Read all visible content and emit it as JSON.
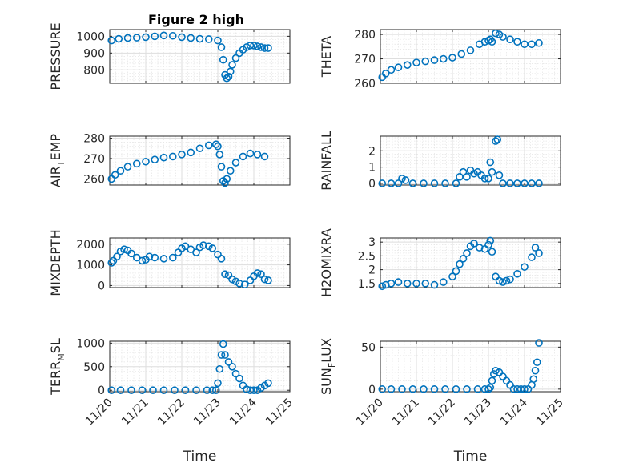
{
  "colors": {
    "marker": "#0072bd",
    "axis": "#262626"
  },
  "chart_data": [
    {
      "type": "scatter",
      "title": "Figure 2 high",
      "ylabel": "PRESSURE",
      "ylim": [
        720,
        1040
      ],
      "yticks": [
        800,
        900,
        1000
      ],
      "xlim": [
        0,
        5
      ],
      "xticks": [],
      "x": [
        0.05,
        0.25,
        0.5,
        0.75,
        1.0,
        1.25,
        1.5,
        1.75,
        2.0,
        2.25,
        2.5,
        2.75,
        3.0,
        3.1,
        3.15,
        3.2,
        3.25,
        3.3,
        3.35,
        3.4,
        3.5,
        3.6,
        3.7,
        3.8,
        3.9,
        4.0,
        4.1,
        4.2,
        4.3,
        4.4
      ],
      "values": [
        975,
        985,
        990,
        992,
        995,
        1000,
        1005,
        1003,
        995,
        990,
        985,
        983,
        975,
        935,
        860,
        770,
        750,
        760,
        790,
        830,
        870,
        900,
        920,
        935,
        945,
        945,
        940,
        935,
        930,
        930
      ]
    },
    {
      "type": "scatter",
      "ylabel": "THETA",
      "ylim": [
        260,
        282
      ],
      "yticks": [
        260,
        270,
        280
      ],
      "xlim": [
        0,
        5
      ],
      "xticks": [],
      "x": [
        0.05,
        0.15,
        0.3,
        0.5,
        0.75,
        1.0,
        1.25,
        1.5,
        1.75,
        2.0,
        2.25,
        2.5,
        2.75,
        2.9,
        3.0,
        3.05,
        3.1,
        3.2,
        3.3,
        3.4,
        3.6,
        3.8,
        4.0,
        4.2,
        4.4
      ],
      "values": [
        262.5,
        264,
        265.5,
        266.5,
        267.5,
        268.5,
        269,
        269.5,
        270,
        270.5,
        272,
        273.5,
        276,
        277,
        277.5,
        278,
        277,
        280.5,
        280,
        279,
        278,
        277,
        276,
        276,
        276.5
      ]
    },
    {
      "type": "scatter",
      "ylabel": "AIR_TEMP",
      "ylim": [
        257,
        281
      ],
      "yticks": [
        260,
        270,
        280
      ],
      "xlim": [
        0,
        5
      ],
      "xticks": [],
      "x": [
        0.05,
        0.15,
        0.3,
        0.5,
        0.75,
        1.0,
        1.25,
        1.5,
        1.75,
        2.0,
        2.25,
        2.5,
        2.75,
        2.95,
        3.0,
        3.05,
        3.1,
        3.15,
        3.2,
        3.25,
        3.35,
        3.5,
        3.7,
        3.9,
        4.1,
        4.3
      ],
      "values": [
        260,
        262,
        264,
        266,
        267.5,
        268.5,
        269.5,
        270.5,
        271,
        272,
        273,
        275,
        276.5,
        277,
        276,
        272,
        266,
        259,
        258,
        260,
        264,
        268,
        271,
        272.5,
        272,
        271
      ]
    },
    {
      "type": "scatter",
      "ylabel": "RAINFALL",
      "ylim": [
        -0.1,
        2.9
      ],
      "yticks": [
        0,
        1,
        2
      ],
      "xlim": [
        0,
        5
      ],
      "xticks": [],
      "x": [
        0.05,
        0.3,
        0.5,
        0.6,
        0.7,
        0.9,
        1.2,
        1.5,
        1.8,
        2.1,
        2.2,
        2.3,
        2.4,
        2.5,
        2.6,
        2.7,
        2.8,
        2.9,
        3.0,
        3.05,
        3.1,
        3.2,
        3.25,
        3.3,
        3.4,
        3.6,
        3.8,
        4.0,
        4.2,
        4.4
      ],
      "values": [
        0,
        0,
        0,
        0.3,
        0.2,
        0,
        0,
        0,
        0,
        0,
        0.4,
        0.7,
        0.4,
        0.8,
        0.6,
        0.7,
        0.5,
        0.3,
        0.3,
        1.3,
        0.7,
        2.6,
        2.7,
        0.5,
        0,
        0,
        0,
        0,
        0,
        0
      ]
    },
    {
      "type": "scatter",
      "ylabel": "MIXDEPTH",
      "ylim": [
        -100,
        2300
      ],
      "yticks": [
        0,
        1000,
        2000
      ],
      "xlim": [
        0,
        5
      ],
      "xticks": [],
      "x": [
        0.05,
        0.1,
        0.2,
        0.3,
        0.4,
        0.5,
        0.6,
        0.75,
        0.9,
        1.0,
        1.1,
        1.25,
        1.5,
        1.75,
        1.9,
        2.0,
        2.1,
        2.25,
        2.4,
        2.5,
        2.6,
        2.75,
        2.85,
        3.0,
        3.1,
        3.2,
        3.3,
        3.4,
        3.5,
        3.6,
        3.75,
        3.9,
        4.0,
        4.1,
        4.2,
        4.3,
        4.4
      ],
      "values": [
        1100,
        1200,
        1400,
        1650,
        1750,
        1700,
        1550,
        1350,
        1200,
        1250,
        1400,
        1350,
        1300,
        1350,
        1600,
        1800,
        1900,
        1750,
        1600,
        1850,
        1950,
        1900,
        1800,
        1500,
        1300,
        550,
        500,
        300,
        200,
        100,
        50,
        250,
        450,
        600,
        550,
        300,
        250
      ]
    },
    {
      "type": "scatter",
      "ylabel": "H2OMIXRA",
      "ylim": [
        1.35,
        3.15
      ],
      "yticks": [
        1.5,
        2,
        2.5,
        3
      ],
      "xlim": [
        0,
        5
      ],
      "xticks": [],
      "x": [
        0.05,
        0.15,
        0.3,
        0.5,
        0.75,
        1.0,
        1.25,
        1.5,
        1.75,
        2.0,
        2.1,
        2.2,
        2.3,
        2.4,
        2.5,
        2.6,
        2.75,
        2.9,
        3.0,
        3.05,
        3.1,
        3.2,
        3.3,
        3.4,
        3.5,
        3.6,
        3.8,
        4.0,
        4.2,
        4.3,
        4.4
      ],
      "values": [
        1.4,
        1.45,
        1.5,
        1.55,
        1.5,
        1.5,
        1.5,
        1.45,
        1.55,
        1.75,
        1.95,
        2.2,
        2.4,
        2.6,
        2.85,
        2.95,
        2.8,
        2.75,
        2.9,
        3.05,
        2.65,
        1.75,
        1.6,
        1.55,
        1.6,
        1.65,
        1.85,
        2.1,
        2.45,
        2.8,
        2.6
      ]
    },
    {
      "type": "scatter",
      "ylabel": "TERR_MSL",
      "ylim": [
        -30,
        1040
      ],
      "yticks": [
        0,
        500,
        1000
      ],
      "xlim": [
        0,
        5
      ],
      "xticks": [
        "11/20",
        "11/21",
        "11/22",
        "11/23",
        "11/24",
        "11/25"
      ],
      "xlabel": "Time",
      "x": [
        0.05,
        0.3,
        0.6,
        0.9,
        1.2,
        1.5,
        1.8,
        2.1,
        2.4,
        2.7,
        2.85,
        2.95,
        3.0,
        3.05,
        3.1,
        3.15,
        3.2,
        3.3,
        3.4,
        3.5,
        3.6,
        3.7,
        3.8,
        3.9,
        4.0,
        4.1,
        4.2,
        4.3,
        4.4
      ],
      "values": [
        0,
        0,
        0,
        0,
        0,
        0,
        0,
        0,
        0,
        0,
        0,
        0,
        150,
        450,
        750,
        980,
        750,
        600,
        500,
        350,
        250,
        100,
        20,
        0,
        0,
        0,
        50,
        100,
        150
      ]
    },
    {
      "type": "scatter",
      "ylabel": "SUN_FLUX",
      "ylim": [
        -3,
        57
      ],
      "yticks": [
        0,
        50
      ],
      "xlim": [
        0,
        5
      ],
      "xticks": [
        "11/20",
        "11/21",
        "11/22",
        "11/23",
        "11/24",
        "11/25"
      ],
      "xlabel": "Time",
      "x": [
        0.05,
        0.3,
        0.6,
        0.9,
        1.2,
        1.5,
        1.8,
        2.1,
        2.4,
        2.7,
        2.9,
        3.0,
        3.05,
        3.1,
        3.15,
        3.2,
        3.3,
        3.4,
        3.5,
        3.6,
        3.7,
        3.8,
        3.9,
        4.0,
        4.1,
        4.2,
        4.25,
        4.3,
        4.35,
        4.4
      ],
      "values": [
        0,
        0,
        0,
        0,
        0,
        0,
        0,
        0,
        0,
        0,
        0,
        0,
        2,
        10,
        18,
        22,
        20,
        15,
        10,
        5,
        0,
        0,
        0,
        0,
        0,
        5,
        12,
        22,
        32,
        55
      ]
    }
  ]
}
